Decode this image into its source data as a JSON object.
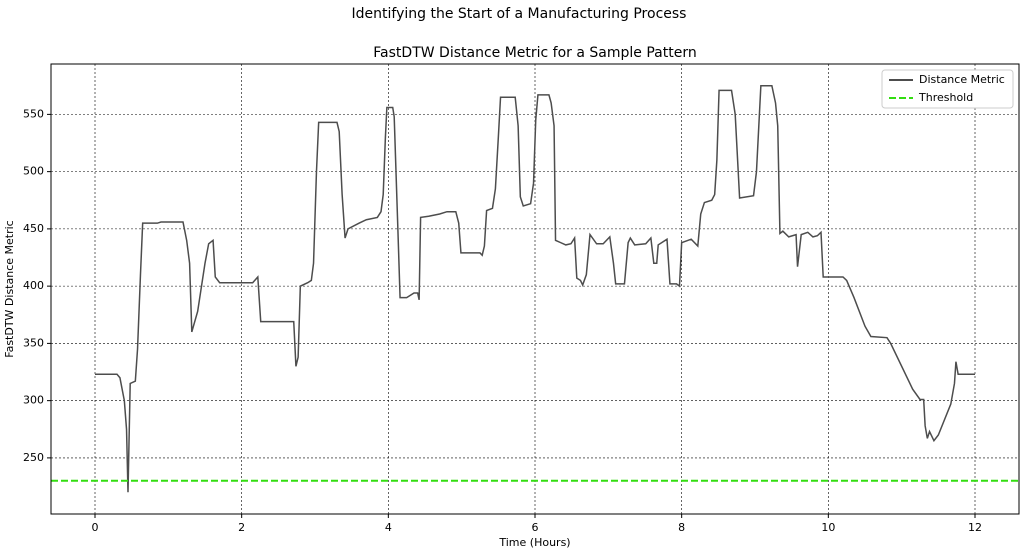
{
  "chart_data": {
    "type": "line",
    "suptitle": "Identifying the Start of a Manufacturing Process",
    "title": "FastDTW Distance Metric for a Sample Pattern",
    "xlabel": "Time (Hours)",
    "ylabel": "FastDTW Distance Metric",
    "x": [
      0,
      0.3,
      0.34,
      0.4,
      0.43,
      0.45,
      0.48,
      0.55,
      0.58,
      0.62,
      0.65,
      0.85,
      0.9,
      1.2,
      1.25,
      1.29,
      1.32,
      1.4,
      1.5,
      1.55,
      1.61,
      1.64,
      1.7,
      2.15,
      2.22,
      2.26,
      2.71,
      2.74,
      2.77,
      2.8,
      2.9,
      2.95,
      2.98,
      3.02,
      3.05,
      3.3,
      3.33,
      3.37,
      3.41,
      3.45,
      3.6,
      3.7,
      3.85,
      3.9,
      3.93,
      3.96,
      3.98,
      4.06,
      4.08,
      4.13,
      4.16,
      4.25,
      4.35,
      4.4,
      4.42,
      4.44,
      4.55,
      4.7,
      4.8,
      4.92,
      4.96,
      4.99,
      5.25,
      5.28,
      5.31,
      5.34,
      5.42,
      5.46,
      5.5,
      5.53,
      5.73,
      5.77,
      5.8,
      5.84,
      5.94,
      5.98,
      6.01,
      6.04,
      6.19,
      6.22,
      6.26,
      6.28,
      6.35,
      6.42,
      6.49,
      6.54,
      6.57,
      6.62,
      6.65,
      6.7,
      6.75,
      6.84,
      6.93,
      7.02,
      7.07,
      7.1,
      7.22,
      7.27,
      7.3,
      7.36,
      7.51,
      7.58,
      7.62,
      7.66,
      7.68,
      7.8,
      7.84,
      7.93,
      7.97,
      8.0,
      8.13,
      8.22,
      8.26,
      8.31,
      8.41,
      8.45,
      8.48,
      8.51,
      8.68,
      8.73,
      8.79,
      8.98,
      9.02,
      9.08,
      9.23,
      9.28,
      9.31,
      9.34,
      9.38,
      9.46,
      9.56,
      9.58,
      9.63,
      9.72,
      9.79,
      9.85,
      9.9,
      9.93,
      10.2,
      10.25,
      10.35,
      10.5,
      10.58,
      10.8,
      10.85,
      11.15,
      11.25,
      11.3,
      11.32,
      11.35,
      11.38,
      11.44,
      11.5,
      11.67,
      11.72,
      11.74,
      11.77,
      12.0
    ],
    "series": [
      {
        "name": "Distance Metric",
        "color": "#4d4d4d",
        "values": [
          323,
          323,
          320,
          300,
          275,
          220,
          315,
          317,
          345,
          410,
          455,
          455,
          456,
          456,
          440,
          420,
          360,
          378,
          420,
          437,
          440,
          408,
          403,
          403,
          408,
          369,
          369,
          330,
          338,
          400,
          403,
          405,
          420,
          500,
          543,
          543,
          535,
          480,
          442,
          450,
          455,
          458,
          460,
          465,
          480,
          530,
          556,
          556,
          548,
          450,
          390,
          390,
          394,
          394,
          388,
          460,
          461,
          463,
          465,
          465,
          455,
          429,
          429,
          427,
          435,
          466,
          468,
          485,
          530,
          565,
          565,
          540,
          478,
          470,
          472,
          490,
          545,
          567,
          567,
          560,
          540,
          440,
          438,
          436,
          437,
          442,
          407,
          405,
          401,
          410,
          445,
          437,
          437,
          443,
          420,
          402,
          402,
          438,
          442,
          436,
          437,
          442,
          420,
          420,
          436,
          441,
          402,
          402,
          400,
          438,
          441,
          435,
          463,
          473,
          475,
          480,
          510,
          571,
          571,
          550,
          477,
          479,
          500,
          575,
          575,
          560,
          540,
          446,
          448,
          443,
          445,
          417,
          445,
          447,
          443,
          444,
          447,
          408,
          408,
          405,
          390,
          365,
          356,
          355,
          350,
          310,
          301,
          301,
          278,
          267,
          273,
          265,
          270,
          297,
          315,
          334,
          323,
          323
        ]
      }
    ],
    "threshold": {
      "name": "Threshold",
      "value": 230,
      "color": "#33dd11"
    },
    "xlim": [
      -0.6,
      12.6
    ],
    "xticks": [
      0,
      2,
      4,
      6,
      8,
      10,
      12
    ],
    "ylim": [
      201,
      594
    ],
    "yticks": [
      250,
      300,
      350,
      400,
      450,
      500,
      550
    ],
    "grid": true,
    "legend": "upper right"
  }
}
